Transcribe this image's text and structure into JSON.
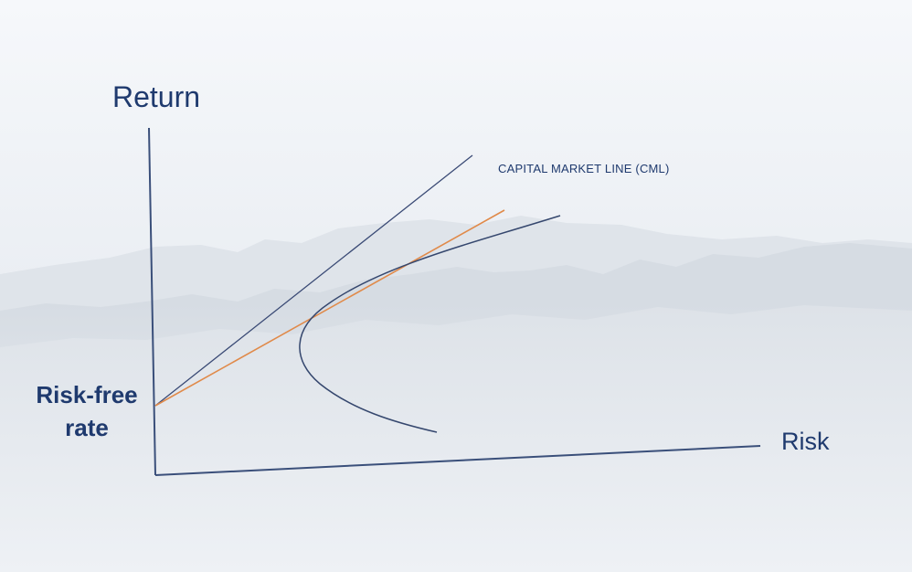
{
  "diagram": {
    "y_axis_label": "Return",
    "x_axis_label": "Risk",
    "risk_free_label_line1": "Risk-free",
    "risk_free_label_line2": "rate",
    "cml_label": "CAPITAL MARKET LINE (CML)"
  },
  "colors": {
    "axis": "#3a4f7a",
    "text": "#1f3a6e",
    "cml_line": "#e08a4a",
    "frontier": "#35476e",
    "steep_line": "#3a4a75"
  }
}
